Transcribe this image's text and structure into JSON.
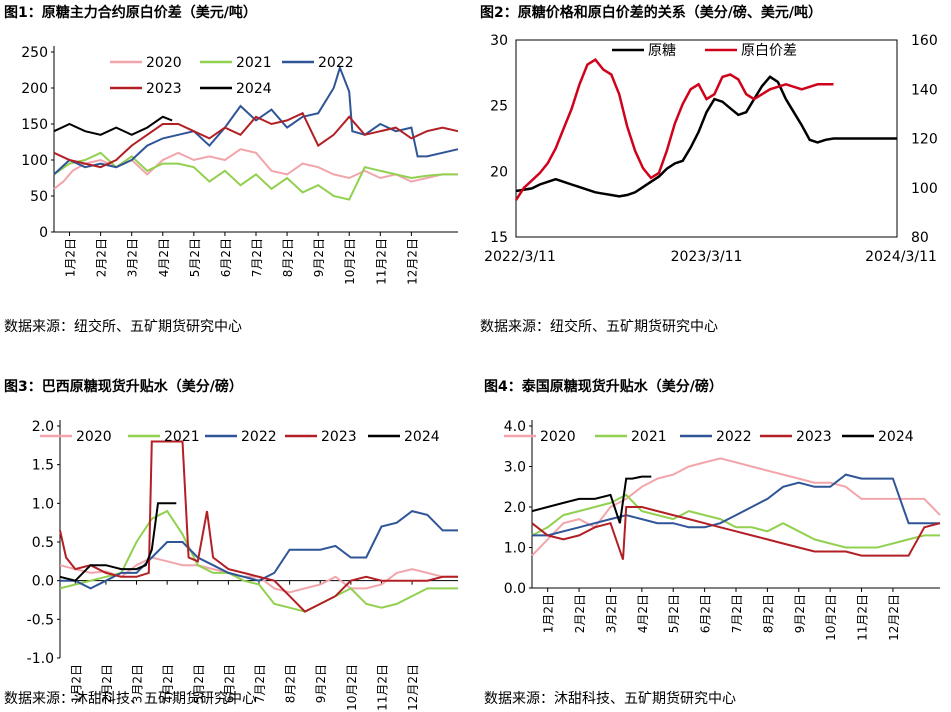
{
  "figures": [
    {
      "title": "图1：原糖主力合约原白价差（美元/吨）",
      "source": "数据来源：纽交所、五矿期货研究中心"
    },
    {
      "title": "图2：原糖价格和原白价差的关系（美分/磅、美元/吨）",
      "source": "数据来源：纽交所、五矿期货研究中心"
    },
    {
      "title": "图3：巴西原糖现货升贴水（美分/磅）",
      "source": "数据来源：沐甜科技、五矿期货研究中心"
    },
    {
      "title": "图4：泰国原糖现货升贴水（美分/磅）",
      "source": "数据来源：沐甜科技、五矿期货研究中心"
    }
  ],
  "colors": {
    "2020": "#f2a6ab",
    "2021": "#92d050",
    "2022": "#2f5597",
    "2023": "#b21f24",
    "2024": "#000000",
    "raw": "#000000",
    "spread": "#d0021b"
  },
  "chart_data": [
    {
      "type": "line",
      "title": "图1：原糖主力合约原白价差（美元/吨）",
      "ylim": [
        0,
        250
      ],
      "yticks": [
        "0",
        "50",
        "100",
        "150",
        "200",
        "250"
      ],
      "categories": [
        "1月2日",
        "2月2日",
        "3月2日",
        "4月2日",
        "5月2日",
        "6月2日",
        "7月2日",
        "8月2日",
        "9月2日",
        "10月2日",
        "11月2日",
        "12月2日"
      ],
      "legend": [
        "2020",
        "2021",
        "2022",
        "2023",
        "2024"
      ],
      "series": [
        {
          "name": "2020",
          "x": [
            0,
            0.3,
            0.6,
            1,
            1.5,
            2,
            2.5,
            3,
            3.5,
            4,
            4.5,
            5,
            5.5,
            6,
            6.5,
            7,
            7.5,
            8,
            8.5,
            9,
            9.5,
            10,
            10.5,
            11,
            11.5,
            12,
            12.5,
            13
          ],
          "values": [
            60,
            70,
            85,
            95,
            100,
            90,
            100,
            80,
            100,
            110,
            100,
            105,
            100,
            115,
            110,
            85,
            80,
            95,
            90,
            80,
            75,
            85,
            75,
            80,
            70,
            75,
            80,
            80
          ]
        },
        {
          "name": "2021",
          "x": [
            0,
            0.5,
            1,
            1.5,
            2,
            2.5,
            3,
            3.5,
            4,
            4.5,
            5,
            5.5,
            6,
            6.5,
            7,
            7.5,
            8,
            8.5,
            9,
            9.5,
            10,
            10.5,
            11,
            11.5,
            12,
            12.5,
            13
          ],
          "values": [
            80,
            95,
            100,
            110,
            90,
            105,
            85,
            95,
            95,
            90,
            70,
            85,
            65,
            80,
            60,
            75,
            55,
            65,
            50,
            45,
            90,
            85,
            80,
            75,
            78,
            80,
            80
          ]
        },
        {
          "name": "2022",
          "x": [
            0,
            0.5,
            1,
            1.5,
            2,
            2.5,
            3,
            3.5,
            4,
            4.5,
            5,
            5.5,
            6,
            6.5,
            7,
            7.5,
            8,
            8.5,
            9,
            9.2,
            9.5,
            9.6,
            10,
            10.5,
            11,
            11.5,
            11.7,
            12,
            12.5,
            13
          ],
          "values": [
            80,
            100,
            90,
            95,
            90,
            100,
            120,
            130,
            135,
            140,
            120,
            145,
            175,
            155,
            170,
            145,
            160,
            165,
            200,
            228,
            195,
            140,
            135,
            150,
            140,
            145,
            105,
            105,
            110,
            115
          ]
        },
        {
          "name": "2023",
          "x": [
            0,
            0.5,
            1,
            1.5,
            2,
            2.5,
            3,
            3.5,
            4,
            4.5,
            5,
            5.5,
            6,
            6.5,
            7,
            7.5,
            8,
            8.5,
            9,
            9.5,
            10,
            10.5,
            11,
            11.5,
            12,
            12.5,
            13
          ],
          "values": [
            110,
            100,
            95,
            90,
            100,
            120,
            135,
            150,
            150,
            140,
            130,
            145,
            135,
            160,
            150,
            155,
            165,
            120,
            135,
            160,
            135,
            140,
            145,
            130,
            140,
            145,
            140
          ]
        },
        {
          "name": "2024",
          "x": [
            0,
            0.5,
            1,
            1.5,
            2,
            2.5,
            3,
            3.5,
            3.8
          ],
          "values": [
            140,
            150,
            140,
            135,
            145,
            135,
            145,
            160,
            155
          ]
        }
      ]
    },
    {
      "type": "line",
      "title": "图2：原糖价格和原白价差的关系（美分/磅、美元/吨）",
      "ylim": [
        15,
        30
      ],
      "y2lim": [
        80,
        160
      ],
      "yticks": [
        "15",
        "20",
        "25",
        "30"
      ],
      "y2ticks": [
        "80",
        "100",
        "120",
        "140",
        "160"
      ],
      "categories": [
        "2022/3/11",
        "2023/3/11",
        "2024/3/11"
      ],
      "legend": [
        "原糖",
        "原白价差"
      ],
      "series": [
        {
          "name": "原糖",
          "axis": "left",
          "x": [
            0,
            1,
            1.5,
            2,
            2.5,
            3,
            3.5,
            4,
            4.5,
            5,
            5.5,
            6,
            6.5,
            7,
            7.5,
            8,
            8.5,
            9,
            9.5,
            10,
            10.5,
            11,
            11.5,
            12,
            12.5,
            13,
            13.5,
            14,
            14.5,
            15,
            15.5,
            16,
            16.5,
            17,
            17.5,
            18,
            18.5,
            19,
            19.5,
            20,
            20.5,
            21,
            21.5,
            22,
            22.5,
            23,
            23.5,
            24
          ],
          "values": [
            18.5,
            18.7,
            19,
            19.2,
            19.4,
            19.2,
            19,
            18.8,
            18.6,
            18.4,
            18.3,
            18.2,
            18.1,
            18.2,
            18.4,
            18.8,
            19.2,
            19.6,
            20.2,
            20.6,
            20.8,
            21.8,
            23,
            24.5,
            25.5,
            25.3,
            24.8,
            24.3,
            24.5,
            25.5,
            26.5,
            27.2,
            26.8,
            25.5,
            24.5,
            23.5,
            22.4,
            22.2,
            22.4,
            22.5,
            22.5,
            22.5,
            22.5,
            22.5,
            22.5,
            22.5,
            22.5,
            22.5
          ]
        },
        {
          "name": "原白价差",
          "axis": "right",
          "x": [
            0,
            0.5,
            1,
            1.5,
            2,
            2.5,
            3,
            3.5,
            4,
            4.5,
            5,
            5.5,
            6,
            6.5,
            7,
            7.5,
            8,
            8.5,
            9,
            9.5,
            10,
            10.5,
            11,
            11.5,
            12,
            12.5,
            13,
            13.5,
            14,
            14.5,
            15,
            15.5,
            16,
            16.5,
            17,
            17.5,
            18,
            18.5,
            19,
            19.5,
            20
          ],
          "values": [
            95,
            100,
            103,
            106,
            110,
            116,
            124,
            132,
            142,
            150,
            152,
            148,
            146,
            138,
            125,
            115,
            108,
            104,
            106,
            115,
            126,
            134,
            140,
            142,
            136,
            138,
            145,
            146,
            144,
            138,
            136,
            138,
            140,
            141,
            142,
            141,
            140,
            141,
            142,
            142,
            142
          ]
        }
      ]
    },
    {
      "type": "line",
      "title": "图3：巴西原糖现货升贴水（美分/磅）",
      "ylim": [
        -1.0,
        2.0
      ],
      "yticks": [
        "-1.0",
        "-0.5",
        "0.0",
        "0.5",
        "1.0",
        "1.5",
        "2.0"
      ],
      "categories": [
        "1月2日",
        "2月2日",
        "3月2日",
        "4月2日",
        "5月2日",
        "6月2日",
        "7月2日",
        "8月2日",
        "9月2日",
        "10月2日",
        "11月2日",
        "12月2日"
      ],
      "legend": [
        "2020",
        "2021",
        "2022",
        "2023",
        "2024"
      ],
      "series": [
        {
          "name": "2020",
          "x": [
            0,
            0.5,
            1,
            1.5,
            2,
            2.5,
            3,
            3.5,
            4,
            4.5,
            5,
            5.5,
            6,
            6.5,
            7,
            7.5,
            8,
            8.5,
            9,
            9.5,
            10,
            10.5,
            11,
            11.5,
            12,
            12.5,
            13
          ],
          "values": [
            0.2,
            0.15,
            0.1,
            0.12,
            0.05,
            0.2,
            0.3,
            0.25,
            0.2,
            0.2,
            0.15,
            0.1,
            0.05,
            0.05,
            -0.1,
            -0.15,
            -0.1,
            -0.05,
            0.05,
            -0.1,
            -0.1,
            -0.05,
            0.1,
            0.15,
            0.1,
            0.05,
            0.05
          ]
        },
        {
          "name": "2021",
          "x": [
            0,
            0.5,
            1,
            1.5,
            2,
            2.5,
            3,
            3.5,
            4,
            4.5,
            5,
            5.5,
            6,
            6.5,
            7,
            7.5,
            8,
            8.5,
            9,
            9.5,
            10,
            10.5,
            11,
            11.5,
            12,
            12.5,
            13
          ],
          "values": [
            -0.1,
            -0.05,
            0,
            0.05,
            0.1,
            0.5,
            0.8,
            0.9,
            0.6,
            0.2,
            0.1,
            0.1,
            0,
            -0.05,
            -0.3,
            -0.35,
            -0.4,
            -0.3,
            -0.2,
            -0.1,
            -0.3,
            -0.35,
            -0.3,
            -0.2,
            -0.1,
            -0.1,
            -0.1
          ]
        },
        {
          "name": "2022",
          "x": [
            0,
            0.5,
            1,
            1.5,
            2,
            2.5,
            3,
            3.5,
            4,
            4.5,
            5,
            5.5,
            6,
            6.5,
            7,
            7.5,
            8,
            8.5,
            9,
            9.5,
            10,
            10.5,
            11,
            11.5,
            12,
            12.5,
            13
          ],
          "values": [
            0,
            0,
            -0.1,
            0,
            0.1,
            0.1,
            0.3,
            0.5,
            0.5,
            0.3,
            0.2,
            0.1,
            0.05,
            0,
            0.1,
            0.4,
            0.4,
            0.4,
            0.45,
            0.3,
            0.3,
            0.7,
            0.75,
            0.9,
            0.85,
            0.65,
            0.65
          ]
        },
        {
          "name": "2023",
          "x": [
            0,
            0.2,
            0.5,
            1,
            1.5,
            2,
            2.5,
            2.9,
            3,
            3.5,
            4,
            4.2,
            4.5,
            4.8,
            5,
            5.5,
            6,
            6.5,
            7,
            7.5,
            8,
            8.5,
            9,
            9.5,
            10,
            10.5,
            11,
            11.5,
            12,
            12.5,
            13
          ],
          "values": [
            0.65,
            0.3,
            0.15,
            0.2,
            0.1,
            0.05,
            0.05,
            0.1,
            1.8,
            1.8,
            1.8,
            0.3,
            0.25,
            0.9,
            0.3,
            0.15,
            0.1,
            0.05,
            0,
            -0.2,
            -0.4,
            -0.3,
            -0.2,
            0,
            0.05,
            0,
            0,
            0,
            0,
            0.05,
            0.05
          ]
        },
        {
          "name": "2024",
          "x": [
            0,
            0.5,
            1,
            1.5,
            2,
            2.5,
            2.8,
            3,
            3.2,
            3.5,
            3.8
          ],
          "values": [
            0.05,
            0,
            0.2,
            0.2,
            0.15,
            0.15,
            0.2,
            0.4,
            1.0,
            1.0,
            1.0
          ]
        }
      ]
    },
    {
      "type": "line",
      "title": "图4：泰国原糖现货升贴水（美分/磅）",
      "ylim": [
        0.0,
        4.0
      ],
      "yticks": [
        "0.0",
        "1.0",
        "2.0",
        "3.0",
        "4.0"
      ],
      "categories": [
        "1月2日",
        "2月2日",
        "3月2日",
        "4月2日",
        "5月2日",
        "6月2日",
        "7月2日",
        "8月2日",
        "9月2日",
        "10月2日",
        "11月2日",
        "12月2日"
      ],
      "legend": [
        "2020",
        "2021",
        "2022",
        "2023",
        "2024"
      ],
      "series": [
        {
          "name": "2020",
          "x": [
            0,
            0.5,
            1,
            1.5,
            2,
            2.5,
            3,
            3.5,
            4,
            4.5,
            5,
            5.5,
            6,
            6.5,
            7,
            7.5,
            8,
            8.5,
            9,
            9.5,
            10,
            10.5,
            11,
            11.5,
            12,
            12.5,
            13
          ],
          "values": [
            0.8,
            1.2,
            1.6,
            1.7,
            1.5,
            2.0,
            2.2,
            2.5,
            2.7,
            2.8,
            3.0,
            3.1,
            3.2,
            3.1,
            3.0,
            2.9,
            2.8,
            2.7,
            2.6,
            2.6,
            2.5,
            2.2,
            2.2,
            2.2,
            2.2,
            2.2,
            1.8
          ]
        },
        {
          "name": "2021",
          "x": [
            0,
            0.5,
            1,
            1.5,
            2,
            2.5,
            3,
            3.5,
            4,
            4.5,
            5,
            5.5,
            6,
            6.5,
            7,
            7.5,
            8,
            8.5,
            9,
            9.5,
            10,
            10.5,
            11,
            11.5,
            12,
            12.5,
            13
          ],
          "values": [
            1.3,
            1.5,
            1.8,
            1.9,
            2.0,
            2.1,
            2.3,
            1.9,
            1.8,
            1.7,
            1.9,
            1.8,
            1.7,
            1.5,
            1.5,
            1.4,
            1.6,
            1.4,
            1.2,
            1.1,
            1.0,
            1.0,
            1.0,
            1.1,
            1.2,
            1.3,
            1.3
          ]
        },
        {
          "name": "2022",
          "x": [
            0,
            0.5,
            1,
            1.5,
            2,
            2.5,
            3,
            3.5,
            4,
            4.5,
            5,
            5.5,
            6,
            6.5,
            7,
            7.5,
            8,
            8.5,
            9,
            9.5,
            10,
            10.5,
            11,
            11.5,
            12,
            12.5,
            13
          ],
          "values": [
            1.3,
            1.3,
            1.4,
            1.5,
            1.6,
            1.7,
            1.8,
            1.7,
            1.6,
            1.6,
            1.5,
            1.5,
            1.6,
            1.8,
            2.0,
            2.2,
            2.5,
            2.6,
            2.5,
            2.5,
            2.8,
            2.7,
            2.7,
            2.7,
            1.6,
            1.6,
            1.6
          ]
        },
        {
          "name": "2023",
          "x": [
            0,
            0.5,
            1,
            1.5,
            2,
            2.5,
            2.9,
            3,
            3.5,
            4,
            4.5,
            5,
            5.5,
            6,
            6.5,
            7,
            7.5,
            8,
            8.5,
            9,
            9.5,
            10,
            10.5,
            11,
            11.5,
            12,
            12.5,
            13
          ],
          "values": [
            1.6,
            1.3,
            1.2,
            1.3,
            1.5,
            1.6,
            0.7,
            2.0,
            2.0,
            1.9,
            1.8,
            1.7,
            1.6,
            1.5,
            1.4,
            1.3,
            1.2,
            1.1,
            1.0,
            0.9,
            0.9,
            0.9,
            0.8,
            0.8,
            0.8,
            0.8,
            1.5,
            1.6
          ]
        },
        {
          "name": "2024",
          "x": [
            0,
            0.5,
            1,
            1.5,
            2,
            2.5,
            2.8,
            3,
            3.2,
            3.5,
            3.8
          ],
          "values": [
            1.9,
            2.0,
            2.1,
            2.2,
            2.2,
            2.3,
            1.6,
            2.7,
            2.7,
            2.75,
            2.75
          ]
        }
      ]
    }
  ]
}
